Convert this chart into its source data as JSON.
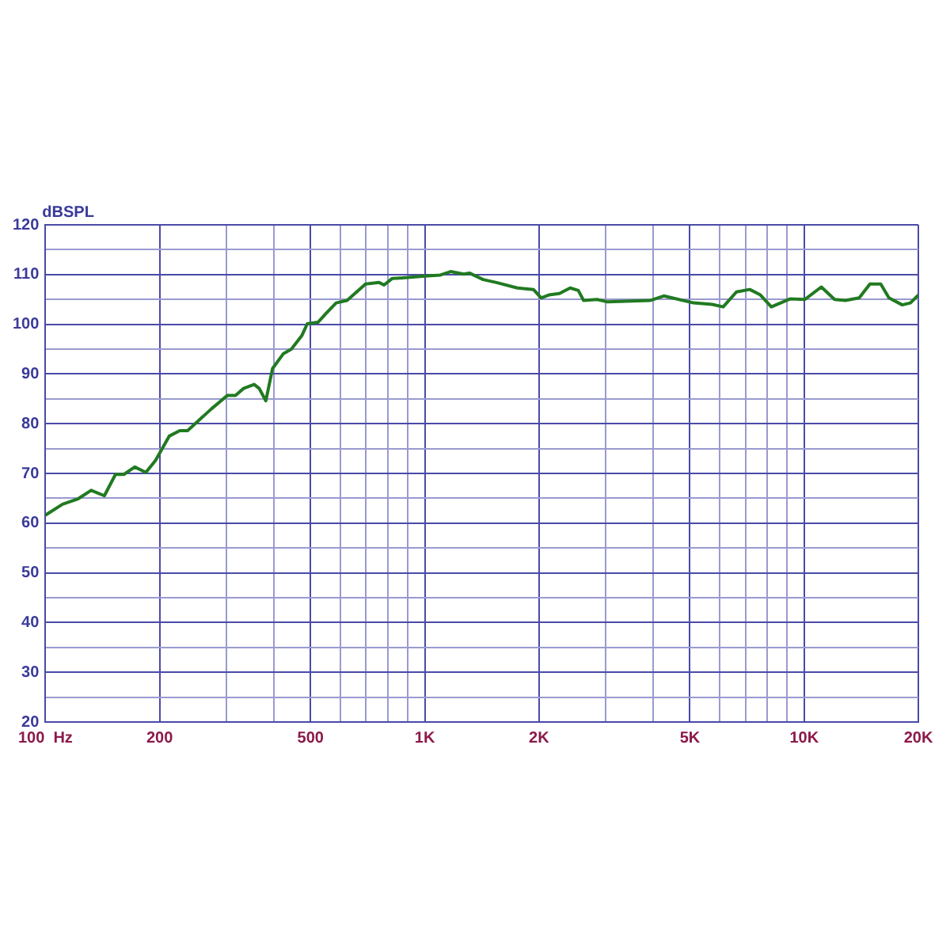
{
  "chart_data": {
    "type": "line",
    "ylabel": "dBSPL",
    "log": "x",
    "grid": true,
    "legend": false,
    "marker": "none",
    "line_style": "solid",
    "xlim": [
      100,
      20000
    ],
    "xticks": [
      {
        "value": 100,
        "label": "100  Hz"
      },
      200,
      {
        "value": 300,
        "label": null
      },
      {
        "value": 400,
        "label": null
      },
      500,
      {
        "value": 600,
        "label": null
      },
      {
        "value": 700,
        "label": null
      },
      {
        "value": 800,
        "label": null
      },
      {
        "value": 900,
        "label": null
      },
      {
        "value": 1000,
        "label": "1K"
      },
      {
        "value": 2000,
        "label": "2K"
      },
      {
        "value": 3000,
        "label": null
      },
      {
        "value": 4000,
        "label": null
      },
      {
        "value": 5000,
        "label": "5K"
      },
      {
        "value": 6000,
        "label": null
      },
      {
        "value": 7000,
        "label": null
      },
      {
        "value": 8000,
        "label": null
      },
      {
        "value": 9000,
        "label": null
      },
      {
        "value": 10000,
        "label": "10K"
      },
      {
        "value": 20000,
        "label": "20K"
      }
    ],
    "ylim": [
      20,
      120
    ],
    "yticks": [
      20,
      {
        "value": 25,
        "label": null
      },
      30,
      {
        "value": 35,
        "label": null
      },
      40,
      {
        "value": 45,
        "label": null
      },
      50,
      {
        "value": 55,
        "label": null
      },
      60,
      {
        "value": 65,
        "label": null
      },
      70,
      {
        "value": 75,
        "label": null
      },
      80,
      {
        "value": 85,
        "label": null
      },
      90,
      {
        "value": 95,
        "label": null
      },
      100,
      {
        "value": 105,
        "label": null
      },
      110,
      {
        "value": 115,
        "label": null
      },
      120
    ],
    "series": [
      {
        "color": "#217a21",
        "x": [
          100,
          111,
          122,
          132,
          143,
          153,
          161,
          172,
          184,
          195,
          212,
          226,
          237,
          274,
          302,
          317,
          333,
          355,
          366,
          381,
          397,
          424,
          445,
          474,
          490,
          523,
          548,
          584,
          624,
          698,
          758,
          781,
          820,
          902,
          998,
          1099,
          1170,
          1268,
          1311,
          1425,
          1545,
          1754,
          1934,
          2027,
          2124,
          2264,
          2417,
          2539,
          2622,
          2844,
          3033,
          3939,
          4266,
          5108,
          5727,
          6117,
          6630,
          7189,
          7669,
          8194,
          9175,
          10050,
          11100,
          12030,
          12850,
          13970,
          14910,
          15920,
          16730,
          18140,
          19060,
          20000
        ],
        "values": [
          61.6,
          63.8,
          64.9,
          66.6,
          65.5,
          69.8,
          69.8,
          71.3,
          70.2,
          72.6,
          77.5,
          78.6,
          78.6,
          83.0,
          85.7,
          85.7,
          87.1,
          87.9,
          87.1,
          84.6,
          91.1,
          94.1,
          95.0,
          97.7,
          100.1,
          100.4,
          102.1,
          104.3,
          104.8,
          108.1,
          108.4,
          107.9,
          109.2,
          109.4,
          109.7,
          109.9,
          110.6,
          110.1,
          110.3,
          109.0,
          108.4,
          107.3,
          107.0,
          105.3,
          105.9,
          106.2,
          107.3,
          106.8,
          104.8,
          105.0,
          104.5,
          104.8,
          105.7,
          104.3,
          104.0,
          103.5,
          106.5,
          107.0,
          105.9,
          103.5,
          105.1,
          105.0,
          107.5,
          105.0,
          104.8,
          105.3,
          108.1,
          108.1,
          105.3,
          103.9,
          104.3,
          105.9
        ]
      }
    ]
  }
}
